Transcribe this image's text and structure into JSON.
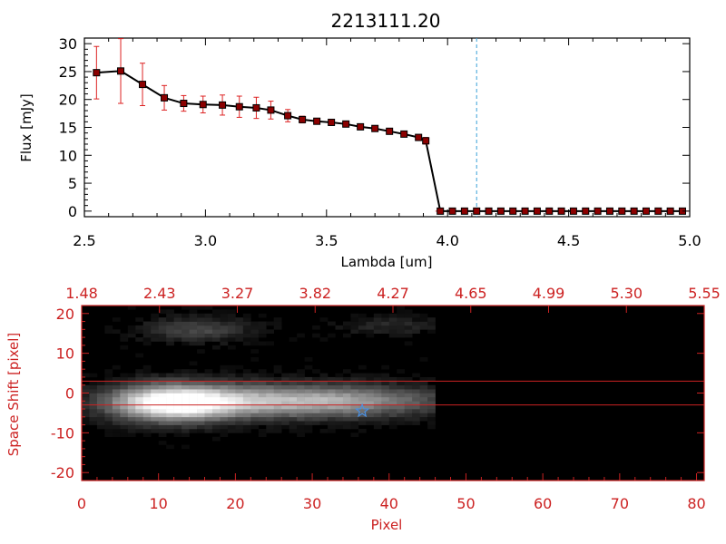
{
  "chart_data": [
    {
      "type": "line",
      "title": "2213111.20",
      "xlabel": "Lambda [um]",
      "ylabel": "Flux [mJy]",
      "xlim": [
        2.5,
        5.0
      ],
      "ylim": [
        -1,
        31
      ],
      "xticks": [
        "2.5",
        "3.0",
        "3.5",
        "4.0",
        "4.5",
        "5.0"
      ],
      "yticks": [
        "0",
        "5",
        "10",
        "15",
        "20",
        "25",
        "30"
      ],
      "colors": {
        "line": "#000000",
        "marker": "#8b0000",
        "errorbar": "#dd2222",
        "vline": "#3aa0d8",
        "axes": "#000000"
      },
      "vertical_line_x": 4.12,
      "series": [
        {
          "x": [
            2.55,
            2.65,
            2.74,
            2.83,
            2.91,
            2.99,
            3.07,
            3.14,
            3.21,
            3.27,
            3.34,
            3.4,
            3.46,
            3.52,
            3.58,
            3.64,
            3.7,
            3.76,
            3.82,
            3.88,
            3.91,
            3.97,
            4.02,
            4.07,
            4.12,
            4.17,
            4.22,
            4.27,
            4.32,
            4.37,
            4.42,
            4.47,
            4.52,
            4.57,
            4.62,
            4.67,
            4.72,
            4.77,
            4.82,
            4.87,
            4.92,
            4.97
          ],
          "y": [
            24.8,
            25.1,
            22.7,
            20.3,
            19.3,
            19.1,
            19.0,
            18.7,
            18.5,
            18.1,
            17.1,
            16.4,
            16.1,
            15.9,
            15.6,
            15.1,
            14.8,
            14.3,
            13.8,
            13.2,
            12.6,
            0,
            0,
            0,
            0,
            0,
            0,
            0,
            0,
            0,
            0,
            0,
            0,
            0,
            0,
            0,
            0,
            0,
            0,
            0,
            0,
            0
          ],
          "err": [
            4.7,
            5.8,
            3.8,
            2.2,
            1.4,
            1.5,
            1.8,
            1.9,
            1.9,
            1.6,
            1.1,
            0.6,
            0.5,
            0.5,
            0.5,
            0.5,
            0.5,
            0.5,
            0.5,
            0.5,
            0.6,
            0,
            0,
            0,
            0,
            0,
            0,
            0,
            0,
            0,
            0,
            0,
            0,
            0,
            0,
            0,
            0,
            0,
            0,
            0,
            0,
            0
          ]
        }
      ]
    },
    {
      "type": "heatmap",
      "xlabel": "Pixel",
      "ylabel": "Space Shift [pixel]",
      "xlim": [
        0,
        81
      ],
      "ylim": [
        -22,
        22
      ],
      "xticks": [
        "0",
        "10",
        "20",
        "30",
        "40",
        "50",
        "60",
        "70",
        "80"
      ],
      "yticks": [
        "-20",
        "-10",
        "0",
        "10",
        "20"
      ],
      "top_xticks": [
        "1.48",
        "2.43",
        "3.27",
        "3.82",
        "4.27",
        "4.65",
        "4.99",
        "5.30",
        "5.55"
      ],
      "colors": {
        "frame": "#cc2222",
        "background": "#000000",
        "star": "#4a90e2"
      },
      "horizontal_lines_y": [
        3,
        -3
      ],
      "marker_star": {
        "x": 36.5,
        "y": -4.5
      },
      "signal_end_x": 46,
      "blobs": [
        {
          "x": 11.5,
          "y": -2.5,
          "sx": 5.5,
          "sy": 3.2,
          "peak": 0.95
        },
        {
          "x": 22,
          "y": -2.0,
          "sx": 10,
          "sy": 3.0,
          "peak": 0.55
        },
        {
          "x": 36,
          "y": -2.0,
          "sx": 9,
          "sy": 2.8,
          "peak": 0.42
        },
        {
          "x": 15,
          "y": 16,
          "sx": 5,
          "sy": 2.2,
          "peak": 0.28
        },
        {
          "x": 40,
          "y": 17,
          "sx": 5,
          "sy": 1.8,
          "peak": 0.15
        }
      ]
    }
  ]
}
